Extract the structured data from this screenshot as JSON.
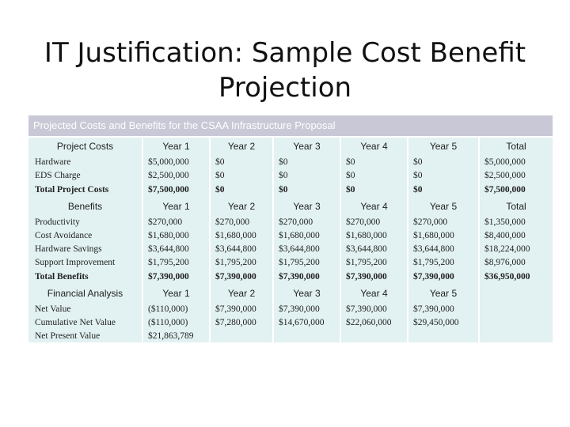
{
  "title": "IT Justification: Sample Cost Benefit Projection",
  "table": {
    "title": "Projected Costs and Benefits for the CSAA Infrastructure Proposal",
    "sections": [
      {
        "header": [
          "Project Costs",
          "Year 1",
          "Year 2",
          "Year 3",
          "Year 4",
          "Year 5",
          "Total"
        ],
        "rows": [
          [
            "Hardware",
            "$5,000,000",
            "$0",
            "$0",
            "$0",
            "$0",
            "$5,000,000"
          ],
          [
            "EDS Charge",
            "$2,500,000",
            "$0",
            "$0",
            "$0",
            "$0",
            "$2,500,000"
          ],
          [
            "Total Project Costs",
            "$7,500,000",
            "$0",
            "$0",
            "$0",
            "$0",
            "$7,500,000"
          ]
        ]
      },
      {
        "header": [
          "Benefits",
          "Year 1",
          "Year 2",
          "Year 3",
          "Year 4",
          "Year 5",
          "Total"
        ],
        "rows": [
          [
            "Productivity",
            "$270,000",
            "$270,000",
            "$270,000",
            "$270,000",
            "$270,000",
            "$1,350,000"
          ],
          [
            "Cost Avoidance",
            "$1,680,000",
            "$1,680,000",
            "$1,680,000",
            "$1,680,000",
            "$1,680,000",
            "$8,400,000"
          ],
          [
            "Hardware Savings",
            "$3,644,800",
            "$3,644,800",
            "$3,644,800",
            "$3,644,800",
            "$3,644,800",
            "$18,224,000"
          ],
          [
            "Support Improvement",
            "$1,795,200",
            "$1,795,200",
            "$1,795,200",
            "$1,795,200",
            "$1,795,200",
            "$8,976,000"
          ],
          [
            "Total Benefits",
            "$7,390,000",
            "$7,390,000",
            "$7,390,000",
            "$7,390,000",
            "$7,390,000",
            "$36,950,000"
          ]
        ]
      },
      {
        "header": [
          "Financial Analysis",
          "Year 1",
          "Year 2",
          "Year 3",
          "Year 4",
          "Year 5"
        ],
        "rows": [
          [
            "Net Value",
            "($110,000)",
            "$7,390,000",
            "$7,390,000",
            "$7,390,000",
            "$7,390,000"
          ],
          [
            "Cumulative Net Value",
            "($110,000)",
            "$7,280,000",
            "$14,670,000",
            "$22,060,000",
            "$29,450,000"
          ],
          [
            "Net Present Value",
            "$21,863,789"
          ]
        ]
      }
    ]
  }
}
